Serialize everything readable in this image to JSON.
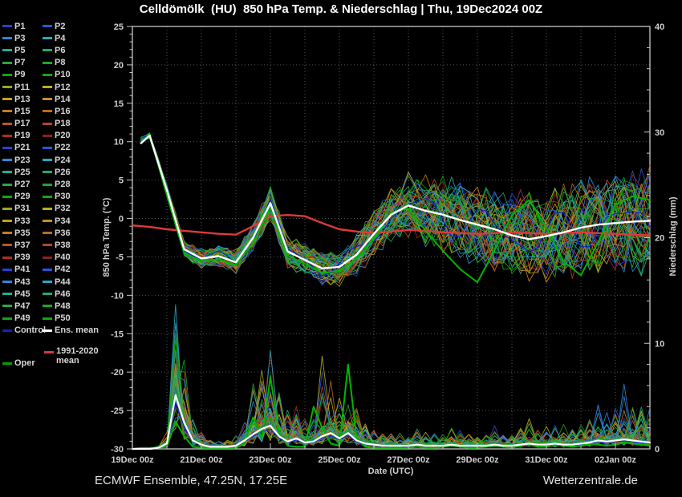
{
  "header": {
    "title": "Celldömölk  (HU)  850 hPa Temp. & Niederschlag | Thu, 19Dec2024 00Z"
  },
  "footer": {
    "left": "ECMWF Ensemble, 47.25N, 17.25E",
    "right": "Wetterzentrale.de"
  },
  "legend": {
    "members": [
      "P1",
      "P2",
      "P3",
      "P4",
      "P5",
      "P6",
      "P7",
      "P8",
      "P9",
      "P10",
      "P11",
      "P12",
      "P13",
      "P14",
      "P15",
      "P16",
      "P17",
      "P18",
      "P19",
      "P20",
      "P21",
      "P22",
      "P23",
      "P24",
      "P25",
      "P26",
      "P27",
      "P28",
      "P29",
      "P30",
      "P31",
      "P32",
      "P33",
      "P34",
      "P35",
      "P36",
      "P37",
      "P38",
      "P39",
      "P40",
      "P41",
      "P42",
      "P43",
      "P44",
      "P45",
      "P46",
      "P47",
      "P48",
      "P49",
      "P50"
    ],
    "member_palette": [
      "#2b3fd0",
      "#2b55d8",
      "#2f86d8",
      "#27a7c8",
      "#1fae96",
      "#25aa6a",
      "#28a843",
      "#1fa628",
      "#15a415",
      "#0caa0c",
      "#9aa61e",
      "#bcae1e",
      "#c6a018",
      "#c98e20",
      "#c77c1e",
      "#bc6a20",
      "#b85822",
      "#b44424",
      "#aa3020",
      "#8f2020"
    ],
    "control": {
      "label": "Control",
      "color": "#1122cc"
    },
    "ens_mean": {
      "label": "Ens. mean",
      "color": "#ffffff"
    },
    "climate": {
      "lines": [
        "1991-2020",
        "mean"
      ],
      "color": "#d23b3b"
    },
    "oper": {
      "label": "Oper",
      "color": "#00a400"
    }
  },
  "chart_data": {
    "type": "line",
    "title": "Celldömölk (HU) 850 hPa Temp. & Niederschlag | Thu, 19Dec2024 00Z",
    "xlabel": "Date (UTC)",
    "x_tick_labels": [
      "19Dec 00z",
      "21Dec 00z",
      "23Dec 00z",
      "25Dec 00z",
      "27Dec 00z",
      "29Dec 00z",
      "31Dec 00z",
      "02Jan 00z"
    ],
    "x_tick_days": [
      0,
      2,
      4,
      6,
      8,
      10,
      12,
      14
    ],
    "x_range_days": [
      0,
      15
    ],
    "y_left": {
      "label": "850 hPa Temp. (°C)",
      "range": [
        -30,
        25
      ],
      "tick_major": 5,
      "tick_minor": 1
    },
    "y_right": {
      "label": "Niederschlag (mm)",
      "range": [
        0,
        40
      ],
      "tick_major": 10,
      "tick_minor": 2
    },
    "grid": true,
    "legend_position": "left",
    "n_members": 50,
    "temp_step_days": 0.5,
    "precip_step_days": 0.25,
    "series": {
      "ens_mean_temp": [
        9.8,
        10.8,
        3.7,
        -4.0,
        -5.2,
        -4.9,
        -5.7,
        -2.5,
        2.0,
        -4.3,
        -5.4,
        -6.5,
        -6.3,
        -4.7,
        -2.0,
        0.5,
        1.7,
        1.0,
        0.5,
        -0.2,
        -0.8,
        -1.4,
        -2.2,
        -2.7,
        -2.3,
        -1.8,
        -1.2,
        -0.8,
        -0.6,
        -0.4,
        -0.3
      ],
      "climate_mean_temp": [
        -0.9,
        -1.1,
        -1.4,
        -1.6,
        -1.8,
        -2.0,
        -2.1,
        -1.0,
        0.3,
        0.45,
        0.3,
        -0.6,
        -1.4,
        -1.7,
        -1.9,
        -1.7,
        -1.5,
        -1.6,
        -1.8,
        -1.9,
        -2.0,
        -1.9,
        -1.8,
        -1.9,
        -2.0,
        -1.9,
        -1.8,
        -1.9,
        -2.0,
        -2.1,
        -2.2
      ],
      "oper_temp": [
        9.8,
        11.0,
        3.0,
        -4.5,
        -5.6,
        -5.3,
        -6.1,
        -3.2,
        1.4,
        -4.8,
        -5.9,
        -7.1,
        -6.8,
        -5.2,
        -2.6,
        0.8,
        1.3,
        -1.6,
        -4.2,
        -6.6,
        -8.3,
        -4.1,
        0.4,
        2.4,
        -1.2,
        -5.6,
        -7.4,
        -3.1,
        1.8,
        2.9,
        2.4
      ],
      "ensemble_spread_temp": [
        0.3,
        0.5,
        1.0,
        1.3,
        1.5,
        1.7,
        1.9,
        2.2,
        2.6,
        2.4,
        2.4,
        2.6,
        2.8,
        3.2,
        3.6,
        4.2,
        4.8,
        5.2,
        5.6,
        6.0,
        6.4,
        6.6,
        6.8,
        7.0,
        7.0,
        7.0,
        7.2,
        7.4,
        7.6,
        7.8,
        8.0
      ],
      "ens_mean_precip_6h": [
        0,
        0,
        0,
        0.1,
        0.5,
        5.1,
        2.5,
        0.8,
        0.4,
        0.2,
        0.2,
        0.2,
        0.3,
        0.8,
        1.4,
        1.9,
        2.2,
        1.2,
        0.7,
        1.0,
        0.6,
        0.7,
        1.2,
        1.5,
        1.0,
        1.5,
        0.8,
        0.5,
        0.4,
        0.3,
        0.3,
        0.3,
        0.3,
        0.4,
        0.3,
        0.3,
        0.3,
        0.4,
        0.3,
        0.3,
        0.3,
        0.3,
        0.4,
        0.3,
        0.3,
        0.4,
        0.5,
        0.4,
        0.4,
        0.5,
        0.4,
        0.4,
        0.5,
        0.6,
        0.8,
        0.7,
        0.8,
        0.9,
        0.8,
        0.7,
        0.6
      ],
      "ensemble_max_precip_6h": [
        0,
        0,
        0,
        0.3,
        1.5,
        9.9,
        8.0,
        3.0,
        1.5,
        1.0,
        0.8,
        0.8,
        1.2,
        3.0,
        6.5,
        8.0,
        9.0,
        6.0,
        3.5,
        4.0,
        3.0,
        3.5,
        9.0,
        6.5,
        5.0,
        8.5,
        4.5,
        2.5,
        2.0,
        1.5,
        1.5,
        1.5,
        1.8,
        2.0,
        1.5,
        1.5,
        1.5,
        2.2,
        1.8,
        1.5,
        1.2,
        1.8,
        2.2,
        1.5,
        1.5,
        2.5,
        3.0,
        2.0,
        2.0,
        3.0,
        2.5,
        2.0,
        2.5,
        3.5,
        4.0,
        3.5,
        4.0,
        5.8,
        5.0,
        4.5,
        4.0
      ],
      "oper_precip_6h": [
        0,
        0.1,
        0.1,
        0.1,
        0.2,
        2.6,
        1.2,
        0.2,
        0.1,
        0.1,
        0.1,
        0.1,
        0.1,
        0.5,
        3.0,
        1.0,
        6.8,
        1.5,
        0.3,
        0.2,
        0.2,
        4.0,
        2.0,
        0.5,
        0.3,
        8.0,
        1.0,
        0.2,
        0.1,
        0.1,
        0.1,
        0.1,
        0.1,
        0.2,
        0.1,
        0.1,
        0.2,
        0.3,
        0.2,
        0.1,
        0.1,
        0.2,
        0.3,
        0.2,
        0.1,
        0.3,
        0.4,
        0.2,
        0.2,
        0.4,
        0.3,
        0.2,
        0.3,
        0.5,
        0.4,
        0.3,
        0.4,
        0.6,
        0.5,
        0.4,
        0.3
      ]
    }
  },
  "colors": {
    "background": "#000000",
    "spine": "#c8c8c8",
    "grid": "#9a9a9a",
    "tick_text": "#cfcfcf",
    "ens_mean": "#ffffff",
    "climate_mean": "#dd3a3a",
    "oper": "#00b400",
    "control": "#1122cc"
  }
}
